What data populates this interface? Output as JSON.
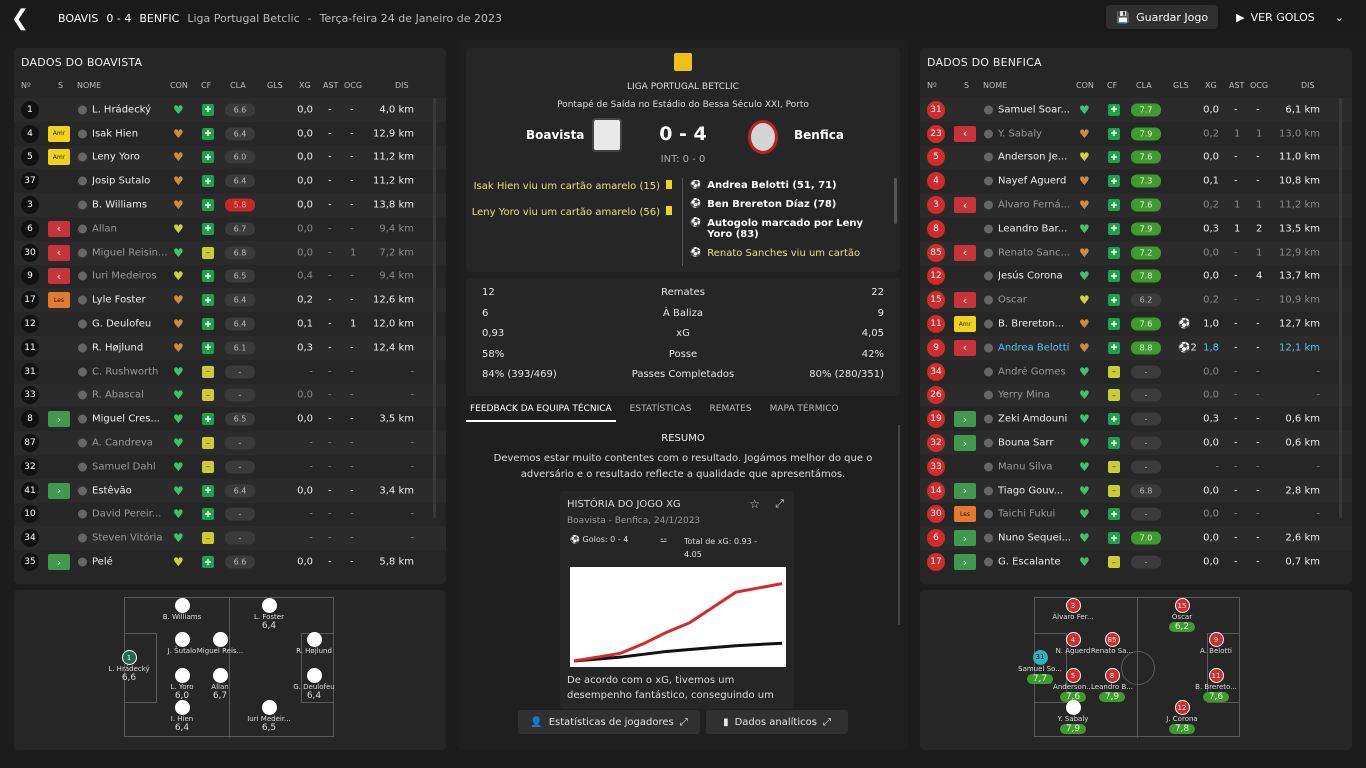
{
  "topbar": {
    "home": "BOAVIS",
    "score": "0 - 4",
    "away": "BENFIC",
    "league": "Liga Portugal Betclic",
    "date": "Terça-feira 24 de Janeiro de 2023",
    "save": "Guardar Jogo",
    "goals": "VER GOLOS"
  },
  "left": {
    "title": "DADOS DO BOAVISTA",
    "headers": {
      "n": "Nº",
      "s": "S",
      "name": "NOME",
      "con": "CON",
      "cf": "CF",
      "cla": "CLA",
      "gls": "GLS",
      "xg": "XG",
      "ast": "AST",
      "ocg": "OCG",
      "dis": "DIS"
    },
    "rows": [
      {
        "n": "1",
        "s": "",
        "name": "L. Hrádecký",
        "h": "g",
        "cf": "g",
        "cla": "6.6",
        "rt": "",
        "gls": "",
        "xg": "0,0",
        "ast": "-",
        "ocg": "-",
        "dis": "4,0 km",
        "dim": false
      },
      {
        "n": "4",
        "s": "Amr",
        "name": "Isak Hien",
        "h": "o",
        "cf": "g",
        "cla": "6.4",
        "rt": "",
        "gls": "",
        "xg": "0,0",
        "ast": "-",
        "ocg": "-",
        "dis": "12,9 km",
        "dim": false
      },
      {
        "n": "5",
        "s": "Amr",
        "name": "Leny Yoro",
        "h": "o",
        "cf": "g",
        "cla": "6.0",
        "rt": "",
        "gls": "",
        "xg": "0,0",
        "ast": "-",
        "ocg": "-",
        "dis": "11,2 km",
        "dim": false
      },
      {
        "n": "37",
        "s": "",
        "name": "Josip Šutalo",
        "h": "o",
        "cf": "g",
        "cla": "6.4",
        "rt": "",
        "gls": "",
        "xg": "0,0",
        "ast": "-",
        "ocg": "-",
        "dis": "11,2 km",
        "dim": false
      },
      {
        "n": "3",
        "s": "",
        "name": "B. Williams",
        "h": "o",
        "cf": "g",
        "cla": "5.8",
        "rt": "red",
        "gls": "",
        "xg": "0,0",
        "ast": "-",
        "ocg": "-",
        "dis": "13,8 km",
        "dim": false
      },
      {
        "n": "6",
        "s": "out",
        "name": "Allan",
        "h": "y",
        "cf": "g",
        "cla": "6.7",
        "rt": "",
        "gls": "",
        "xg": "0,0",
        "ast": "-",
        "ocg": "-",
        "dis": "9,4 km",
        "dim": true
      },
      {
        "n": "30",
        "s": "out",
        "name": "Miguel Reisin...",
        "h": "g",
        "cf": "y",
        "cla": "6.8",
        "rt": "",
        "gls": "",
        "xg": "0,0",
        "ast": "-",
        "ocg": "1",
        "dis": "7,2 km",
        "dim": true
      },
      {
        "n": "9",
        "s": "out",
        "name": "Iuri Medeiros",
        "h": "y",
        "cf": "g",
        "cla": "6.5",
        "rt": "",
        "gls": "",
        "xg": "0,4",
        "ast": "-",
        "ocg": "-",
        "dis": "9,4 km",
        "dim": true
      },
      {
        "n": "17",
        "s": "Les",
        "name": "Lyle Foster",
        "h": "o",
        "cf": "g",
        "cla": "6.4",
        "rt": "",
        "gls": "",
        "xg": "0,2",
        "ast": "-",
        "ocg": "-",
        "dis": "12,6 km",
        "dim": false
      },
      {
        "n": "12",
        "s": "",
        "name": "G. Deulofeu",
        "h": "o",
        "cf": "g",
        "cla": "6.4",
        "rt": "",
        "gls": "",
        "xg": "0,1",
        "ast": "-",
        "ocg": "1",
        "dis": "12,0 km",
        "dim": false
      },
      {
        "n": "11",
        "s": "",
        "name": "R. Højlund",
        "h": "o",
        "cf": "g",
        "cla": "6.1",
        "rt": "",
        "gls": "",
        "xg": "0,3",
        "ast": "-",
        "ocg": "-",
        "dis": "12,4 km",
        "dim": false
      },
      {
        "n": "31",
        "s": "",
        "name": "C. Rushworth",
        "h": "g",
        "cf": "y",
        "cla": "-",
        "rt": "",
        "gls": "",
        "xg": "-",
        "ast": "-",
        "ocg": "-",
        "dis": "-",
        "dim": true
      },
      {
        "n": "33",
        "s": "",
        "name": "R. Abascal",
        "h": "g",
        "cf": "y",
        "cla": "-",
        "rt": "",
        "gls": "",
        "xg": "0,0",
        "ast": "-",
        "ocg": "-",
        "dis": "-",
        "dim": true
      },
      {
        "n": "8",
        "s": "in",
        "name": "Miguel Cres...",
        "h": "g",
        "cf": "g",
        "cla": "6.5",
        "rt": "",
        "gls": "",
        "xg": "0,0",
        "ast": "-",
        "ocg": "-",
        "dis": "3,5 km",
        "dim": false
      },
      {
        "n": "87",
        "s": "",
        "name": "A. Candreva",
        "h": "g",
        "cf": "y",
        "cla": "-",
        "rt": "",
        "gls": "",
        "xg": "-",
        "ast": "-",
        "ocg": "-",
        "dis": "-",
        "dim": true
      },
      {
        "n": "32",
        "s": "",
        "name": "Samuel Dahl",
        "h": "g",
        "cf": "y",
        "cla": "-",
        "rt": "",
        "gls": "",
        "xg": "-",
        "ast": "-",
        "ocg": "-",
        "dis": "-",
        "dim": true
      },
      {
        "n": "41",
        "s": "in",
        "name": "Estêvão",
        "h": "g",
        "cf": "g",
        "cla": "6.4",
        "rt": "",
        "gls": "",
        "xg": "0,0",
        "ast": "-",
        "ocg": "-",
        "dis": "3,4 km",
        "dim": false
      },
      {
        "n": "10",
        "s": "",
        "name": "David Pereir...",
        "h": "g",
        "cf": "g",
        "cla": "-",
        "rt": "",
        "gls": "",
        "xg": "-",
        "ast": "-",
        "ocg": "-",
        "dis": "-",
        "dim": true
      },
      {
        "n": "34",
        "s": "",
        "name": "Steven Vitória",
        "h": "g",
        "cf": "y",
        "cla": "-",
        "rt": "",
        "gls": "",
        "xg": "-",
        "ast": "-",
        "ocg": "-",
        "dis": "-",
        "dim": true
      },
      {
        "n": "35",
        "s": "in",
        "name": "Pelé",
        "h": "y",
        "cf": "g",
        "cla": "6.6",
        "rt": "",
        "gls": "",
        "xg": "0,0",
        "ast": "-",
        "ocg": "-",
        "dis": "5,8 km",
        "dim": false
      }
    ]
  },
  "right": {
    "title": "DADOS DO BENFICA",
    "rows": [
      {
        "n": "31",
        "s": "",
        "name": "Samuel Soar...",
        "h": "g",
        "cf": "g",
        "cla": "7.7",
        "rt": "g",
        "gls": "",
        "xg": "0,0",
        "ast": "-",
        "ocg": "-",
        "dis": "6,1 km",
        "dim": false
      },
      {
        "n": "23",
        "s": "out",
        "name": "Y. Sabaly",
        "h": "o",
        "cf": "g",
        "cla": "7.9",
        "rt": "g",
        "gls": "",
        "xg": "0,2",
        "ast": "1",
        "ocg": "1",
        "dis": "13,0 km",
        "dim": true
      },
      {
        "n": "5",
        "s": "",
        "name": "Anderson Je...",
        "h": "y",
        "cf": "g",
        "cla": "7.6",
        "rt": "g",
        "gls": "",
        "xg": "0,0",
        "ast": "-",
        "ocg": "-",
        "dis": "11,0 km",
        "dim": false
      },
      {
        "n": "4",
        "s": "",
        "name": "Nayef Aguerd",
        "h": "o",
        "cf": "g",
        "cla": "7.3",
        "rt": "g",
        "gls": "",
        "xg": "0,1",
        "ast": "-",
        "ocg": "-",
        "dis": "10,8 km",
        "dim": false
      },
      {
        "n": "3",
        "s": "out",
        "name": "Álvaro Ferná...",
        "h": "o",
        "cf": "g",
        "cla": "7.6",
        "rt": "g",
        "gls": "",
        "xg": "0,2",
        "ast": "1",
        "ocg": "1",
        "dis": "11,2 km",
        "dim": true
      },
      {
        "n": "8",
        "s": "",
        "name": "Leandro Bar...",
        "h": "g",
        "cf": "g",
        "cla": "7.9",
        "rt": "g",
        "gls": "",
        "xg": "0,3",
        "ast": "1",
        "ocg": "2",
        "dis": "13,5 km",
        "dim": false
      },
      {
        "n": "85",
        "s": "out",
        "name": "Renato Sanc...",
        "h": "o",
        "cf": "g",
        "cla": "7.2",
        "rt": "g",
        "gls": "",
        "xg": "0,0",
        "ast": "-",
        "ocg": "1",
        "dis": "12,9 km",
        "dim": true
      },
      {
        "n": "12",
        "s": "",
        "name": "Jesús Corona",
        "h": "g",
        "cf": "g",
        "cla": "7.8",
        "rt": "g",
        "gls": "",
        "xg": "0,0",
        "ast": "-",
        "ocg": "4",
        "dis": "13,7 km",
        "dim": false
      },
      {
        "n": "15",
        "s": "out",
        "name": "Óscar",
        "h": "y",
        "cf": "g",
        "cla": "6.2",
        "rt": "",
        "gls": "",
        "xg": "0,2",
        "ast": "-",
        "ocg": "-",
        "dis": "10,9 km",
        "dim": true
      },
      {
        "n": "11",
        "s": "Amr",
        "name": "B. Brereton...",
        "h": "o",
        "cf": "g",
        "cla": "7.6",
        "rt": "g",
        "gls": "⚽",
        "xg": "1,0",
        "ast": "-",
        "ocg": "-",
        "dis": "12,7 km",
        "dim": false
      },
      {
        "n": "9",
        "s": "out",
        "name": "Andrea Belotti",
        "h": "o",
        "cf": "g",
        "cla": "8.8",
        "rt": "g",
        "gls": "⚽2",
        "xg": "1,8",
        "ast": "-",
        "ocg": "-",
        "dis": "12,1 km",
        "dim": false,
        "hl": true
      },
      {
        "n": "34",
        "s": "",
        "name": "André Gomes",
        "h": "g",
        "cf": "y",
        "cla": "-",
        "rt": "",
        "gls": "",
        "xg": "0,0",
        "ast": "-",
        "ocg": "-",
        "dis": "-",
        "dim": true
      },
      {
        "n": "26",
        "s": "",
        "name": "Yerry Mina",
        "h": "g",
        "cf": "y",
        "cla": "-",
        "rt": "",
        "gls": "",
        "xg": "0,0",
        "ast": "-",
        "ocg": "-",
        "dis": "-",
        "dim": true
      },
      {
        "n": "19",
        "s": "in",
        "name": "Zeki Amdouni",
        "h": "g",
        "cf": "g",
        "cla": "-",
        "rt": "",
        "gls": "",
        "xg": "0,3",
        "ast": "-",
        "ocg": "-",
        "dis": "0,6 km",
        "dim": false
      },
      {
        "n": "32",
        "s": "in",
        "name": "Bouna Sarr",
        "h": "g",
        "cf": "g",
        "cla": "-",
        "rt": "",
        "gls": "",
        "xg": "0,0",
        "ast": "-",
        "ocg": "-",
        "dis": "0,6 km",
        "dim": false
      },
      {
        "n": "33",
        "s": "",
        "name": "Manu Silva",
        "h": "g",
        "cf": "y",
        "cla": "-",
        "rt": "",
        "gls": "",
        "xg": "-",
        "ast": "-",
        "ocg": "-",
        "dis": "-",
        "dim": true
      },
      {
        "n": "14",
        "s": "in",
        "name": "Tiago Gouv...",
        "h": "g",
        "cf": "y",
        "cla": "6.8",
        "rt": "",
        "gls": "",
        "xg": "0,0",
        "ast": "-",
        "ocg": "-",
        "dis": "2,8 km",
        "dim": false
      },
      {
        "n": "30",
        "s": "Les",
        "name": "Taichi Fukui",
        "h": "g",
        "cf": "g",
        "cla": "-",
        "rt": "",
        "gls": "",
        "xg": "0,0",
        "ast": "-",
        "ocg": "-",
        "dis": "-",
        "dim": true
      },
      {
        "n": "6",
        "s": "in",
        "name": "Nuno Sequei...",
        "h": "g",
        "cf": "g",
        "cla": "7.0",
        "rt": "g",
        "gls": "",
        "xg": "0,0",
        "ast": "-",
        "ocg": "-",
        "dis": "2,6 km",
        "dim": false
      },
      {
        "n": "17",
        "s": "in",
        "name": "G. Escalante",
        "h": "g",
        "cf": "y",
        "cla": "-",
        "rt": "",
        "gls": "",
        "xg": "0,0",
        "ast": "-",
        "ocg": "-",
        "dis": "0,7 km",
        "dim": false
      }
    ]
  },
  "center": {
    "league": "LIGA PORTUGAL BETCLIC",
    "venue": "Pontapé de Saída no Estádio do Bessa Século XXI, Porto",
    "home": "Boavista",
    "away": "Benfica",
    "score": "0 - 4",
    "ht": "INT: 0 - 0",
    "events_home": [
      "Isak Hien viu um cartão amarelo (15)",
      "Leny Yoro viu um cartão amarelo (56)"
    ],
    "events_away": [
      "Andrea Belotti (51, 71)",
      "Ben Brereton Díaz (78)",
      "Autogolo marcado por Leny Yoro (83)",
      "Renato Sanches viu um cartão"
    ],
    "stats": [
      {
        "h": "12",
        "l": "Remates",
        "a": "22"
      },
      {
        "h": "6",
        "l": "À Baliza",
        "a": "9"
      },
      {
        "h": "0,93",
        "l": "xG",
        "a": "4,05"
      },
      {
        "h": "58%",
        "l": "Posse",
        "a": "42%"
      },
      {
        "h": "84% (393/469)",
        "l": "Passes Completados",
        "a": "80% (280/351)"
      }
    ],
    "tabs": [
      "FEEDBACK DA EQUIPA TÉCNICA",
      "ESTATÍSTICAS",
      "REMATES",
      "MAPA TÉRMICO"
    ],
    "summary_title": "RESUMO",
    "summary": "Devemos estar muito contentes com o resultado. Jogámos melhor do que o adversário e o resultado reflecte a qualidade que apresentámos.",
    "xg_title": "HISTÓRIA DO JOGO XG",
    "xg_sub": "Boavista - Benfica, 24/1/2023",
    "xg_goals": "Golos: 0 - 4",
    "xg_total": "Total de xG: 0.93 - 4.05",
    "xg_text": "De acordo com o xG, tivemos um desempenho fantástico, conseguindo um",
    "btn_players": "Estatísticas de jogadores",
    "btn_data": "Dados analíticos"
  },
  "pitch_left": [
    {
      "name": "B. Williams",
      "rat": ""
    },
    {
      "name": "L. Foster",
      "rat": "6,4"
    },
    {
      "name": "J. Šutalo",
      "rat": ""
    },
    {
      "name": "Miguel Reis...",
      "rat": ""
    },
    {
      "name": "R. Højlund",
      "rat": ""
    },
    {
      "name": "L. Hrádecký",
      "rat": "6,6",
      "n": "1"
    },
    {
      "name": "L. Yoro",
      "rat": "6,0"
    },
    {
      "name": "Allan",
      "rat": "6,7"
    },
    {
      "name": "G. Deulofeu",
      "rat": "6,4"
    },
    {
      "name": "I. Hien",
      "rat": "6,4"
    },
    {
      "name": "Iuri Medeir...",
      "rat": "6,5"
    }
  ],
  "pitch_right": [
    {
      "n": "3",
      "name": "Álvaro Fer...",
      "rat": ""
    },
    {
      "n": "15",
      "name": "Óscar",
      "rat": "6,2"
    },
    {
      "n": "4",
      "name": "N. Aguerd",
      "rat": ""
    },
    {
      "n": "85",
      "name": "Renato Sa...",
      "rat": ""
    },
    {
      "n": "9",
      "name": "A. Belotti",
      "rat": ""
    },
    {
      "n": "31",
      "name": "Samuel So...",
      "rat": "7,7"
    },
    {
      "n": "5",
      "name": "Anderson...",
      "rat": "7,6"
    },
    {
      "n": "8",
      "name": "Leandro B...",
      "rat": "7,9"
    },
    {
      "n": "11",
      "name": "B. Brereto...",
      "rat": "7,6"
    },
    {
      "n": "",
      "name": "Y. Sabaly",
      "rat": "7,9"
    },
    {
      "n": "12",
      "name": "J. Corona",
      "rat": "7,8"
    }
  ],
  "chart_data": {
    "type": "line",
    "title": "HISTÓRIA DO JOGO XG",
    "series": [
      {
        "name": "Boavista",
        "values": [
          0,
          0.1,
          0.2,
          0.35,
          0.5,
          0.6,
          0.7,
          0.8,
          0.93
        ]
      },
      {
        "name": "Benfica",
        "values": [
          0,
          0.2,
          0.4,
          0.9,
          1.5,
          2.0,
          2.8,
          3.6,
          4.05
        ]
      }
    ],
    "x": [
      0,
      10,
      20,
      30,
      40,
      50,
      60,
      70,
      90
    ]
  }
}
